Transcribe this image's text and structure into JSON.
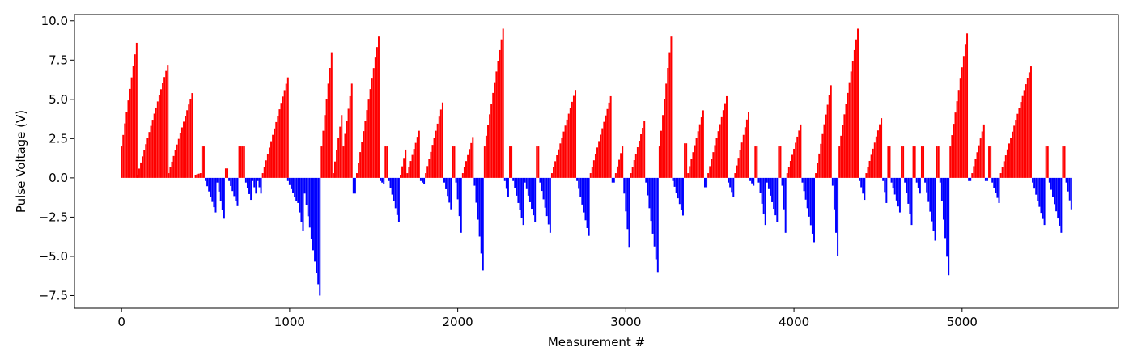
{
  "chart_data": {
    "type": "bar",
    "title": "",
    "xlabel": "Measurement #",
    "ylabel": "Pulse Voltage (V)",
    "xlim": [
      -280,
      5930
    ],
    "ylim": [
      -8.3,
      10.4
    ],
    "x_ticks": [
      0,
      1000,
      2000,
      3000,
      4000,
      5000
    ],
    "y_ticks": [
      -7.5,
      -5.0,
      -2.5,
      0.0,
      2.5,
      5.0,
      7.5,
      10.0
    ],
    "x_tick_labels": [
      "0",
      "1000",
      "2000",
      "3000",
      "4000",
      "5000"
    ],
    "y_tick_labels": [
      "−7.5",
      "−5.0",
      "−2.5",
      "0.0",
      "2.5",
      "5.0",
      "7.5",
      "10.0"
    ],
    "grid": false,
    "colors": {
      "positive": "#ff0000",
      "negative": "#0000ff"
    },
    "note_sampling": "Data points sampled every 10 measurements; each point is a vertical bar from 0 to the value.",
    "segments": [
      {
        "x_start": 0,
        "x_end": 90,
        "v_start": 2.0,
        "v_end": 8.6
      },
      {
        "x_start": 95,
        "x_end": 270,
        "v_start": 0.2,
        "v_end": 7.2
      },
      {
        "x_start": 280,
        "x_end": 420,
        "v_start": 0.3,
        "v_end": 5.4
      },
      {
        "x_start": 440,
        "x_end": 470,
        "v_start": 0.2,
        "v_end": 0.3
      },
      {
        "x_start": 480,
        "x_end": 490,
        "v_start": 2.0,
        "v_end": 2.0
      },
      {
        "x_start": 500,
        "x_end": 560,
        "v_start": -0.2,
        "v_end": -2.2
      },
      {
        "x_start": 570,
        "x_end": 610,
        "v_start": -0.3,
        "v_end": -2.6
      },
      {
        "x_start": 620,
        "x_end": 630,
        "v_start": 0.6,
        "v_end": 0.6
      },
      {
        "x_start": 640,
        "x_end": 690,
        "v_start": -0.2,
        "v_end": -1.8
      },
      {
        "x_start": 700,
        "x_end": 710,
        "v_start": 2.0,
        "v_end": 2.0
      },
      {
        "x_start": 720,
        "x_end": 730,
        "v_start": 2.0,
        "v_end": 2.0
      },
      {
        "x_start": 740,
        "x_end": 770,
        "v_start": -0.3,
        "v_end": -1.4
      },
      {
        "x_start": 780,
        "x_end": 800,
        "v_start": -0.2,
        "v_end": -1.0
      },
      {
        "x_start": 810,
        "x_end": 830,
        "v_start": -0.2,
        "v_end": -1.0
      },
      {
        "x_start": 840,
        "x_end": 985,
        "v_start": 0.3,
        "v_end": 6.4
      },
      {
        "x_start": 990,
        "x_end": 1040,
        "v_start": -0.2,
        "v_end": -1.5
      },
      {
        "x_start": 1050,
        "x_end": 1080,
        "v_start": -1.6,
        "v_end": -3.4
      },
      {
        "x_start": 1090,
        "x_end": 1180,
        "v_start": -1.0,
        "v_end": -7.5
      },
      {
        "x_start": 1190,
        "x_end": 1250,
        "v_start": 2.0,
        "v_end": 8.0
      },
      {
        "x_start": 1260,
        "x_end": 1310,
        "v_start": 0.3,
        "v_end": 4.0
      },
      {
        "x_start": 1320,
        "x_end": 1370,
        "v_start": 2.0,
        "v_end": 6.0
      },
      {
        "x_start": 1380,
        "x_end": 1390,
        "v_start": -1.0,
        "v_end": -1.0
      },
      {
        "x_start": 1400,
        "x_end": 1530,
        "v_start": 0.3,
        "v_end": 9.0
      },
      {
        "x_start": 1540,
        "x_end": 1560,
        "v_start": -0.2,
        "v_end": -0.4
      },
      {
        "x_start": 1570,
        "x_end": 1580,
        "v_start": 2.0,
        "v_end": 2.0
      },
      {
        "x_start": 1590,
        "x_end": 1650,
        "v_start": -0.2,
        "v_end": -2.8
      },
      {
        "x_start": 1660,
        "x_end": 1690,
        "v_start": 0.2,
        "v_end": 1.8
      },
      {
        "x_start": 1700,
        "x_end": 1770,
        "v_start": 0.3,
        "v_end": 3.0
      },
      {
        "x_start": 1780,
        "x_end": 1800,
        "v_start": -0.2,
        "v_end": -0.4
      },
      {
        "x_start": 1810,
        "x_end": 1910,
        "v_start": 0.3,
        "v_end": 4.8
      },
      {
        "x_start": 1920,
        "x_end": 1960,
        "v_start": -0.3,
        "v_end": -2.0
      },
      {
        "x_start": 1970,
        "x_end": 1980,
        "v_start": 2.0,
        "v_end": 2.0
      },
      {
        "x_start": 1990,
        "x_end": 2020,
        "v_start": -0.3,
        "v_end": -3.5
      },
      {
        "x_start": 2030,
        "x_end": 2090,
        "v_start": 0.3,
        "v_end": 2.6
      },
      {
        "x_start": 2100,
        "x_end": 2150,
        "v_start": -0.5,
        "v_end": -5.9
      },
      {
        "x_start": 2160,
        "x_end": 2270,
        "v_start": 2.0,
        "v_end": 9.5
      },
      {
        "x_start": 2280,
        "x_end": 2300,
        "v_start": -0.2,
        "v_end": -1.2
      },
      {
        "x_start": 2310,
        "x_end": 2320,
        "v_start": 2.0,
        "v_end": 2.0
      },
      {
        "x_start": 2330,
        "x_end": 2390,
        "v_start": -0.2,
        "v_end": -3.0
      },
      {
        "x_start": 2400,
        "x_end": 2460,
        "v_start": -0.3,
        "v_end": -2.8
      },
      {
        "x_start": 2470,
        "x_end": 2480,
        "v_start": 2.0,
        "v_end": 2.0
      },
      {
        "x_start": 2490,
        "x_end": 2550,
        "v_start": -0.3,
        "v_end": -3.5
      },
      {
        "x_start": 2560,
        "x_end": 2700,
        "v_start": 0.3,
        "v_end": 5.6
      },
      {
        "x_start": 2710,
        "x_end": 2780,
        "v_start": -0.2,
        "v_end": -3.7
      },
      {
        "x_start": 2790,
        "x_end": 2910,
        "v_start": 0.3,
        "v_end": 5.2
      },
      {
        "x_start": 2920,
        "x_end": 2930,
        "v_start": -0.3,
        "v_end": -0.3
      },
      {
        "x_start": 2940,
        "x_end": 2980,
        "v_start": 0.3,
        "v_end": 2.0
      },
      {
        "x_start": 2990,
        "x_end": 3020,
        "v_start": -1.0,
        "v_end": -4.4
      },
      {
        "x_start": 3030,
        "x_end": 3110,
        "v_start": 0.3,
        "v_end": 3.6
      },
      {
        "x_start": 3120,
        "x_end": 3190,
        "v_start": -0.3,
        "v_end": -6.0
      },
      {
        "x_start": 3200,
        "x_end": 3270,
        "v_start": 2.0,
        "v_end": 9.0
      },
      {
        "x_start": 3280,
        "x_end": 3340,
        "v_start": -0.2,
        "v_end": -2.4
      },
      {
        "x_start": 3350,
        "x_end": 3360,
        "v_start": 2.2,
        "v_end": 2.2
      },
      {
        "x_start": 3370,
        "x_end": 3460,
        "v_start": 0.3,
        "v_end": 4.3
      },
      {
        "x_start": 3470,
        "x_end": 3480,
        "v_start": -0.6,
        "v_end": -0.6
      },
      {
        "x_start": 3490,
        "x_end": 3600,
        "v_start": 0.3,
        "v_end": 5.2
      },
      {
        "x_start": 3610,
        "x_end": 3640,
        "v_start": -0.3,
        "v_end": -1.2
      },
      {
        "x_start": 3650,
        "x_end": 3730,
        "v_start": 0.3,
        "v_end": 4.2
      },
      {
        "x_start": 3740,
        "x_end": 3760,
        "v_start": -0.2,
        "v_end": -0.5
      },
      {
        "x_start": 3770,
        "x_end": 3780,
        "v_start": 2.0,
        "v_end": 2.0
      },
      {
        "x_start": 3790,
        "x_end": 3830,
        "v_start": -0.3,
        "v_end": -3.0
      },
      {
        "x_start": 3840,
        "x_end": 3900,
        "v_start": -0.3,
        "v_end": -2.8
      },
      {
        "x_start": 3910,
        "x_end": 3920,
        "v_start": 2.0,
        "v_end": 2.0
      },
      {
        "x_start": 3930,
        "x_end": 3950,
        "v_start": -0.5,
        "v_end": -3.5
      },
      {
        "x_start": 3960,
        "x_end": 4040,
        "v_start": 0.3,
        "v_end": 3.4
      },
      {
        "x_start": 4050,
        "x_end": 4120,
        "v_start": -0.3,
        "v_end": -4.1
      },
      {
        "x_start": 4130,
        "x_end": 4220,
        "v_start": 0.3,
        "v_end": 5.9
      },
      {
        "x_start": 4230,
        "x_end": 4260,
        "v_start": -0.5,
        "v_end": -5.0
      },
      {
        "x_start": 4270,
        "x_end": 4380,
        "v_start": 2.0,
        "v_end": 9.5
      },
      {
        "x_start": 4390,
        "x_end": 4420,
        "v_start": -0.2,
        "v_end": -1.4
      },
      {
        "x_start": 4430,
        "x_end": 4520,
        "v_start": 0.3,
        "v_end": 3.8
      },
      {
        "x_start": 4530,
        "x_end": 4550,
        "v_start": -0.2,
        "v_end": -1.6
      },
      {
        "x_start": 4560,
        "x_end": 4570,
        "v_start": 2.0,
        "v_end": 2.0
      },
      {
        "x_start": 4580,
        "x_end": 4630,
        "v_start": -0.3,
        "v_end": -2.2
      },
      {
        "x_start": 4640,
        "x_end": 4650,
        "v_start": 2.0,
        "v_end": 2.0
      },
      {
        "x_start": 4660,
        "x_end": 4700,
        "v_start": -0.3,
        "v_end": -3.0
      },
      {
        "x_start": 4710,
        "x_end": 4720,
        "v_start": 2.0,
        "v_end": 2.0
      },
      {
        "x_start": 4730,
        "x_end": 4750,
        "v_start": -0.3,
        "v_end": -1.0
      },
      {
        "x_start": 4760,
        "x_end": 4770,
        "v_start": 2.0,
        "v_end": 2.0
      },
      {
        "x_start": 4780,
        "x_end": 4840,
        "v_start": -0.3,
        "v_end": -4.0
      },
      {
        "x_start": 4850,
        "x_end": 4860,
        "v_start": 2.0,
        "v_end": 2.0
      },
      {
        "x_start": 4870,
        "x_end": 4920,
        "v_start": -0.3,
        "v_end": -6.2
      },
      {
        "x_start": 4930,
        "x_end": 5030,
        "v_start": 2.0,
        "v_end": 9.2
      },
      {
        "x_start": 5040,
        "x_end": 5050,
        "v_start": -0.2,
        "v_end": -0.2
      },
      {
        "x_start": 5060,
        "x_end": 5130,
        "v_start": 0.3,
        "v_end": 3.4
      },
      {
        "x_start": 5140,
        "x_end": 5150,
        "v_start": -0.2,
        "v_end": -0.2
      },
      {
        "x_start": 5160,
        "x_end": 5170,
        "v_start": 2.0,
        "v_end": 2.0
      },
      {
        "x_start": 5180,
        "x_end": 5220,
        "v_start": -0.3,
        "v_end": -1.6
      },
      {
        "x_start": 5230,
        "x_end": 5410,
        "v_start": 0.3,
        "v_end": 7.1
      },
      {
        "x_start": 5420,
        "x_end": 5490,
        "v_start": -0.3,
        "v_end": -3.0
      },
      {
        "x_start": 5500,
        "x_end": 5510,
        "v_start": 2.0,
        "v_end": 2.0
      },
      {
        "x_start": 5520,
        "x_end": 5590,
        "v_start": -0.3,
        "v_end": -3.5
      },
      {
        "x_start": 5600,
        "x_end": 5610,
        "v_start": 2.0,
        "v_end": 2.0
      },
      {
        "x_start": 5620,
        "x_end": 5650,
        "v_start": -0.3,
        "v_end": -2.0
      }
    ]
  }
}
